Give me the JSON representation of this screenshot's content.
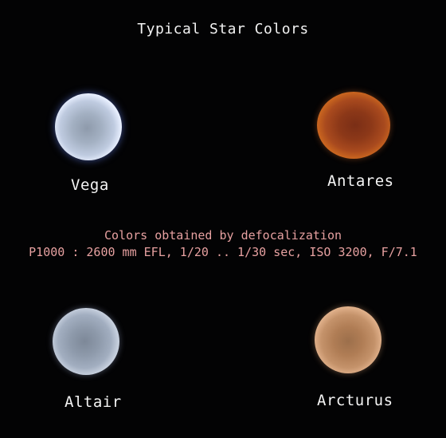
{
  "title": "Typical Star Colors",
  "caption": {
    "line1": "Colors obtained by defocalization",
    "line2": "P1000 : 2600 mm EFL, 1/20 .. 1/30 sec, ISO 3200, F/7.1",
    "color": "#e6a0a0"
  },
  "stars": [
    {
      "name": "Vega",
      "color": "#c7d5ff"
    },
    {
      "name": "Antares",
      "color": "#c9651f"
    },
    {
      "name": "Altair",
      "color": "#c7d0de"
    },
    {
      "name": "Arcturus",
      "color": "#e0b08a"
    }
  ]
}
